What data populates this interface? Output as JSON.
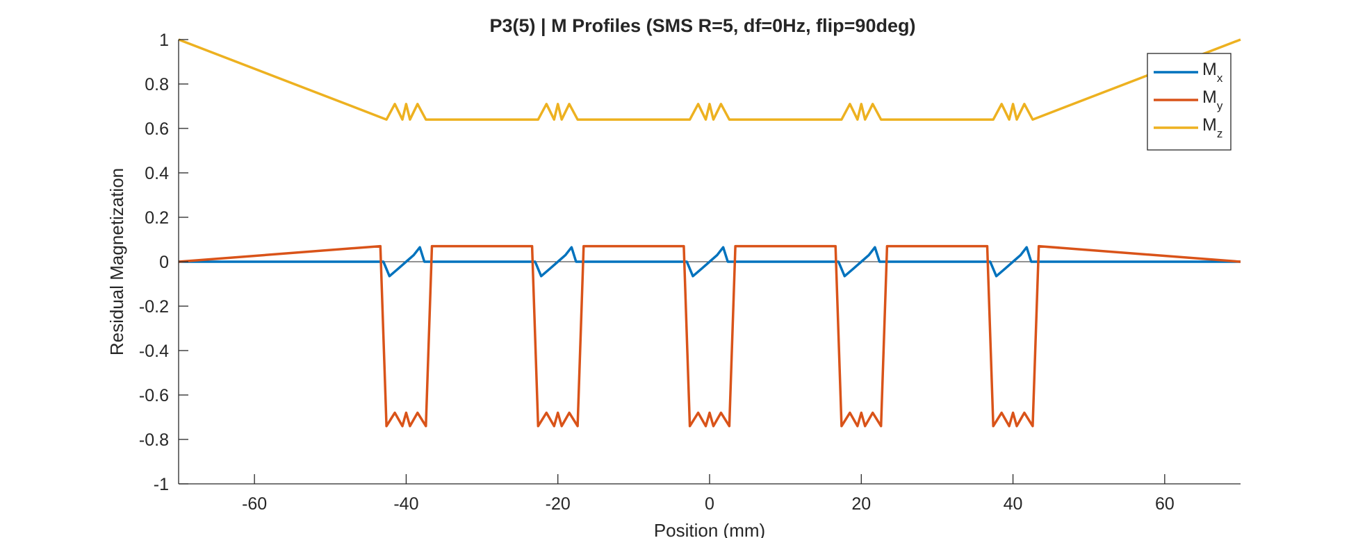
{
  "chart_data": {
    "type": "line",
    "title": "P3(5) | M Profiles (SMS R=5, df=0Hz, flip=90deg)",
    "xlabel": "Position (mm)",
    "ylabel": "Residual Magnetization",
    "xlim": [
      -70,
      70
    ],
    "ylim": [
      -1,
      1
    ],
    "xticks": [
      -60,
      -40,
      -20,
      0,
      20,
      40,
      60
    ],
    "yticks": [
      -1,
      -0.8,
      -0.6,
      -0.4,
      -0.2,
      0,
      0.2,
      0.4,
      0.6,
      0.8,
      1
    ],
    "xtick_labels": [
      "-60",
      "-40",
      "-20",
      "0",
      "20",
      "40",
      "60"
    ],
    "ytick_labels": [
      "-1",
      "-0.8",
      "-0.6",
      "-0.4",
      "-0.2",
      "0",
      "0.2",
      "0.4",
      "0.6",
      "0.8",
      "1"
    ],
    "grid": false,
    "legend_position": "top-right",
    "slice_centers_mm": [
      -40,
      -20,
      0,
      20,
      40
    ],
    "slice_width_mm": 5.6,
    "series": [
      {
        "name": "M",
        "subscript": "x",
        "color": "#0072BD",
        "shape": "approx. 0 everywhere; within each slice a ramp from about -0.06 at the left edge to about +0.06 at the right edge, with small ripples",
        "x": [
          -70,
          -43,
          -42.2,
          -41,
          -40,
          -39,
          -38.2,
          -37.6,
          -23,
          -22.2,
          -21,
          -20,
          -19,
          -18.2,
          -17.6,
          -3,
          -2.2,
          -1,
          0,
          1,
          1.8,
          2.4,
          17,
          17.8,
          19,
          20,
          21,
          21.8,
          22.4,
          37,
          37.8,
          39,
          40,
          41,
          41.8,
          42.4,
          70
        ],
        "y": [
          0,
          0,
          -0.065,
          -0.03,
          0.0,
          0.03,
          0.065,
          0,
          0,
          -0.065,
          -0.03,
          0.0,
          0.03,
          0.065,
          0,
          0,
          -0.065,
          -0.03,
          0.0,
          0.03,
          0.065,
          0,
          0,
          -0.065,
          -0.03,
          0.0,
          0.03,
          0.065,
          0,
          0,
          -0.065,
          -0.03,
          0.0,
          0.03,
          0.065,
          0,
          0
        ]
      },
      {
        "name": "M",
        "subscript": "y",
        "color": "#D95319",
        "shape": "approx. 0 outside the slices with small side-lobe ripples (peaks about +0.07 at the slice edges); inside each slice a trough near -0.7 with ripples between about -0.67 and -0.75",
        "x": [
          -70,
          -43.4,
          -42.6,
          -41.5,
          -40.5,
          -40,
          -39.5,
          -38.5,
          -37.4,
          -36.6,
          -23.4,
          -22.6,
          -21.5,
          -20.5,
          -20,
          -19.5,
          -18.5,
          -17.4,
          -16.6,
          -3.4,
          -2.6,
          -1.5,
          -0.5,
          0,
          0.5,
          1.5,
          2.6,
          3.4,
          16.6,
          17.4,
          18.5,
          19.5,
          20,
          20.5,
          21.5,
          22.6,
          23.4,
          36.6,
          37.4,
          38.5,
          39.5,
          40,
          40.5,
          41.5,
          42.6,
          43.4,
          70
        ],
        "y": [
          0,
          0.07,
          -0.74,
          -0.68,
          -0.74,
          -0.68,
          -0.74,
          -0.68,
          -0.74,
          0.07,
          0.07,
          -0.74,
          -0.68,
          -0.74,
          -0.68,
          -0.74,
          -0.68,
          -0.74,
          0.07,
          0.07,
          -0.74,
          -0.68,
          -0.74,
          -0.68,
          -0.74,
          -0.68,
          -0.74,
          0.07,
          0.07,
          -0.74,
          -0.68,
          -0.74,
          -0.68,
          -0.74,
          -0.68,
          -0.74,
          0.07,
          0.07,
          -0.74,
          -0.68,
          -0.74,
          -0.68,
          -0.74,
          -0.68,
          -0.74,
          0.07,
          0
        ]
      },
      {
        "name": "M",
        "subscript": "z",
        "color": "#EDB120",
        "shape": "approx. 1 outside the slices; inside each slice a dip to about 0.63-0.72 with ripples",
        "x": [
          -70,
          -42.6,
          -41.5,
          -40.5,
          -40,
          -39.5,
          -38.5,
          -37.4,
          -22.6,
          -21.5,
          -20.5,
          -20,
          -19.5,
          -18.5,
          -17.4,
          -2.6,
          -1.5,
          -0.5,
          0,
          0.5,
          1.5,
          2.6,
          17.4,
          18.5,
          19.5,
          20,
          20.5,
          21.5,
          22.6,
          37.4,
          38.5,
          39.5,
          40,
          40.5,
          41.5,
          42.6,
          70
        ],
        "y": [
          1,
          0.64,
          0.71,
          0.64,
          0.71,
          0.64,
          0.71,
          0.64,
          0.64,
          0.71,
          0.64,
          0.71,
          0.64,
          0.71,
          0.64,
          0.64,
          0.71,
          0.64,
          0.71,
          0.64,
          0.71,
          0.64,
          0.64,
          0.71,
          0.64,
          0.71,
          0.64,
          0.71,
          0.64,
          0.64,
          0.71,
          0.64,
          0.71,
          0.64,
          0.71,
          0.64,
          1
        ]
      }
    ],
    "colors": {
      "axes": "#262626",
      "background": "#ffffff",
      "zero_line": "#262626"
    }
  }
}
